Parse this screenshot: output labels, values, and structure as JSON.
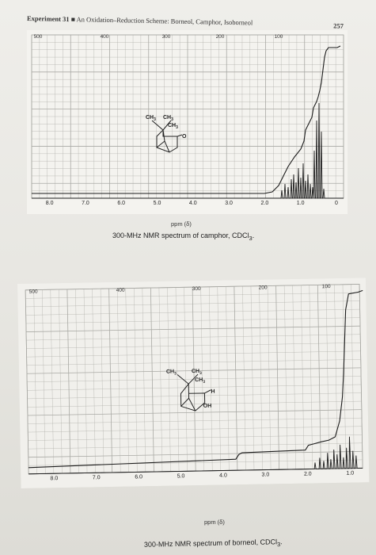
{
  "header": {
    "experiment": "Experiment 31",
    "title": "An Oxidation–Reduction Scheme: Borneol, Camphor, Isoborneol",
    "page_number": "257"
  },
  "colors": {
    "grid": "#a9a9a4",
    "trace": "#1c1c1c",
    "paper": "#efeeea"
  },
  "spectra": [
    {
      "id": "camphor",
      "caption": "300-MHz NMR spectrum of camphor, CDCl",
      "caption_sub": "3",
      "units": "ppm (δ)",
      "hz_labels": [
        "500",
        "400",
        "300",
        "200",
        "100"
      ],
      "ppm_labels": [
        "8.0",
        "7.0",
        "6.0",
        "5.0",
        "4.0",
        "3.0",
        "2.0",
        "1.0",
        "0"
      ],
      "structure": {
        "groups": [
          "CH3",
          "CH3",
          "CH3"
        ],
        "heteroatom": "O"
      }
    },
    {
      "id": "borneol",
      "caption": "300-MHz NMR spectrum of borneol, CDCl",
      "caption_sub": "3",
      "units": "ppm (δ)",
      "hz_labels": [
        "500",
        "400",
        "300",
        "200",
        "100"
      ],
      "ppm_labels": [
        "8.0",
        "7.0",
        "6.0",
        "5.0",
        "4.0",
        "3.0",
        "2.0",
        "1.0"
      ],
      "structure": {
        "groups": [
          "CH3",
          "CH3",
          "CH3"
        ],
        "hydrogen": "H",
        "hydroxyl": "OH"
      }
    }
  ]
}
